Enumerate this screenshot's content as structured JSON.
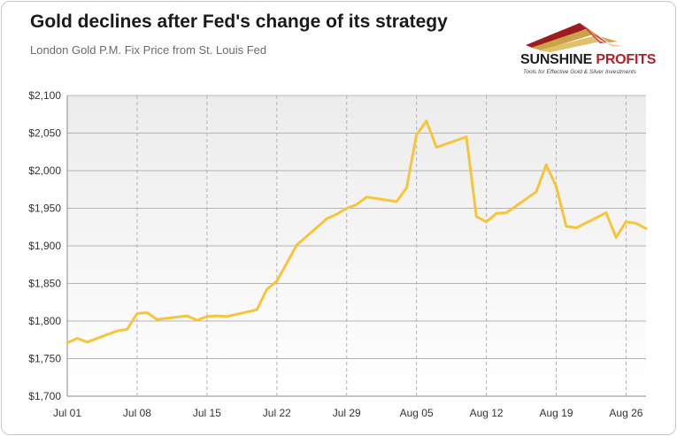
{
  "header": {
    "title": "Gold declines after Fed's change of its strategy",
    "subtitle": "London Gold P.M. Fix Price from St. Louis Fed"
  },
  "logo": {
    "name_part1": "SUNSHINE",
    "name_part2": "PROFITS",
    "tagline": "Tools for Effective Gold & Silver Investments"
  },
  "colors": {
    "line": "#f5c53b",
    "plot_bg_top": "#ececec",
    "plot_bg_bottom": "#ffffff",
    "grid": "#b4b4b4"
  },
  "chart_data": {
    "type": "line",
    "title": "Gold declines after Fed's change of its strategy",
    "subtitle": "London Gold P.M. Fix Price from St. Louis Fed",
    "xlabel": "",
    "ylabel": "",
    "ylim": [
      1700,
      2100
    ],
    "yticks": [
      1700,
      1750,
      1800,
      1850,
      1900,
      1950,
      2000,
      2050,
      2100
    ],
    "ytick_labels": [
      "$1,700",
      "$1,750",
      "$1,800",
      "$1,850",
      "$1,900",
      "$1,950",
      "$2,000",
      "$2,050",
      "$2,100"
    ],
    "xlim": [
      "2020-07-01",
      "2020-08-28"
    ],
    "xticks": [
      "2020-07-01",
      "2020-07-08",
      "2020-07-15",
      "2020-07-22",
      "2020-07-29",
      "2020-08-05",
      "2020-08-12",
      "2020-08-19",
      "2020-08-26"
    ],
    "xtick_labels": [
      "Jul 01",
      "Jul 08",
      "Jul 15",
      "Jul 22",
      "Jul 29",
      "Aug 05",
      "Aug 12",
      "Aug 19",
      "Aug 26"
    ],
    "grid": "vertical dashed at x ticks, horizontal solid at y ticks",
    "series": [
      {
        "x": [
          "2020-07-01",
          "2020-07-02",
          "2020-07-03",
          "2020-07-06",
          "2020-07-07",
          "2020-07-08",
          "2020-07-09",
          "2020-07-10",
          "2020-07-13",
          "2020-07-14",
          "2020-07-15",
          "2020-07-16",
          "2020-07-17",
          "2020-07-20",
          "2020-07-21",
          "2020-07-22",
          "2020-07-23",
          "2020-07-24",
          "2020-07-27",
          "2020-07-28",
          "2020-07-29",
          "2020-07-30",
          "2020-07-31",
          "2020-08-03",
          "2020-08-04",
          "2020-08-05",
          "2020-08-06",
          "2020-08-07",
          "2020-08-10",
          "2020-08-11",
          "2020-08-12",
          "2020-08-13",
          "2020-08-14",
          "2020-08-17",
          "2020-08-18",
          "2020-08-19",
          "2020-08-20",
          "2020-08-21",
          "2020-08-24",
          "2020-08-25",
          "2020-08-26",
          "2020-08-27",
          "2020-08-28"
        ],
        "values": [
          1771,
          1777,
          1772,
          1787,
          1789,
          1810,
          1811,
          1802,
          1807,
          1801,
          1806,
          1807,
          1806,
          1815,
          1842,
          1853,
          1877,
          1901,
          1936,
          1942,
          1950,
          1955,
          1965,
          1959,
          1977,
          2048,
          2066,
          2031,
          2045,
          1939,
          1932,
          1943,
          1944,
          1972,
          2008,
          1979,
          1926,
          1924,
          1944,
          1911,
          1932,
          1930,
          1923
        ]
      }
    ]
  }
}
